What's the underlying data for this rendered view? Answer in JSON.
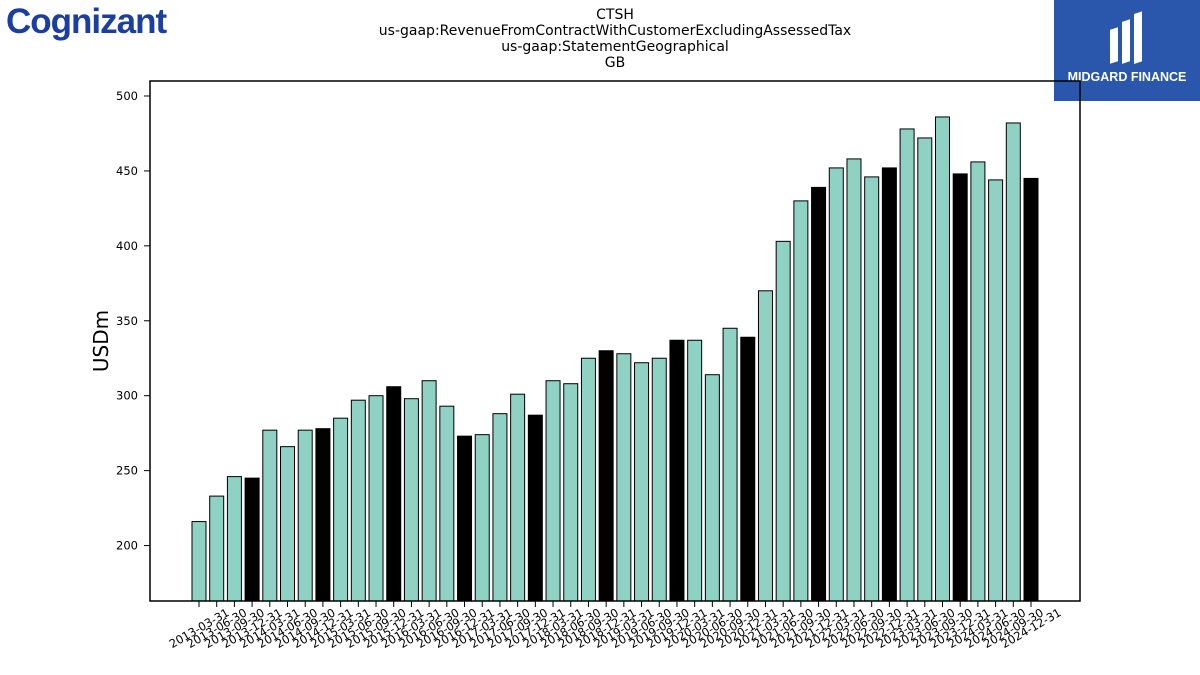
{
  "company_logo": {
    "text": "Cognizant"
  },
  "partner_logo": {
    "name": "MIDGARD FINANCE"
  },
  "colors": {
    "bar_default": "#8fd1c3",
    "bar_highlight": "#000000",
    "bar_edge": "#000000",
    "logo_blue": "#1a3fa0",
    "midgard_bg": "#2a56ab"
  },
  "chart_data": {
    "type": "bar",
    "title": [
      "CTSH",
      "us-gaap:RevenueFromContractWithCustomerExcludingAssessedTax",
      "us-gaap:StatementGeographical",
      "GB"
    ],
    "xlabel": "",
    "ylabel": "USDm",
    "ylim": [
      163,
      510
    ],
    "yticks": [
      200,
      250,
      300,
      350,
      400,
      450,
      500
    ],
    "grid": false,
    "categories": [
      "2013-03-31",
      "2013-06-30",
      "2013-09-30",
      "2013-12-31",
      "2014-03-31",
      "2014-06-30",
      "2014-09-30",
      "2014-12-31",
      "2015-03-31",
      "2015-06-30",
      "2015-09-30",
      "2015-12-31",
      "2016-03-31",
      "2016-06-30",
      "2016-09-30",
      "2016-12-31",
      "2017-03-31",
      "2017-06-30",
      "2017-09-30",
      "2017-12-31",
      "2018-03-31",
      "2018-06-30",
      "2018-09-30",
      "2018-12-31",
      "2019-03-31",
      "2019-06-30",
      "2019-09-30",
      "2019-12-31",
      "2020-03-31",
      "2020-06-30",
      "2020-09-30",
      "2020-12-31",
      "2021-03-31",
      "2021-06-30",
      "2021-09-30",
      "2021-12-31",
      "2022-03-31",
      "2022-06-30",
      "2022-09-30",
      "2022-12-31",
      "2023-03-31",
      "2023-06-30",
      "2023-09-30",
      "2023-12-31",
      "2024-03-31",
      "2024-06-30",
      "2024-09-30",
      "2024-12-31"
    ],
    "values": [
      216,
      233,
      246,
      245,
      277,
      266,
      277,
      278,
      285,
      297,
      300,
      306,
      298,
      310,
      293,
      273,
      274,
      288,
      301,
      287,
      310,
      308,
      325,
      330,
      328,
      322,
      325,
      337,
      337,
      314,
      345,
      339,
      370,
      403,
      430,
      439,
      452,
      458,
      446,
      452,
      478,
      472,
      486,
      448,
      456,
      444,
      482,
      445
    ],
    "highlight": [
      false,
      false,
      false,
      true,
      false,
      false,
      false,
      true,
      false,
      false,
      false,
      true,
      false,
      false,
      false,
      true,
      false,
      false,
      false,
      true,
      false,
      false,
      false,
      true,
      false,
      false,
      false,
      true,
      false,
      false,
      false,
      true,
      false,
      false,
      false,
      true,
      false,
      false,
      false,
      true,
      false,
      false,
      false,
      true,
      false,
      false,
      false,
      true
    ]
  }
}
